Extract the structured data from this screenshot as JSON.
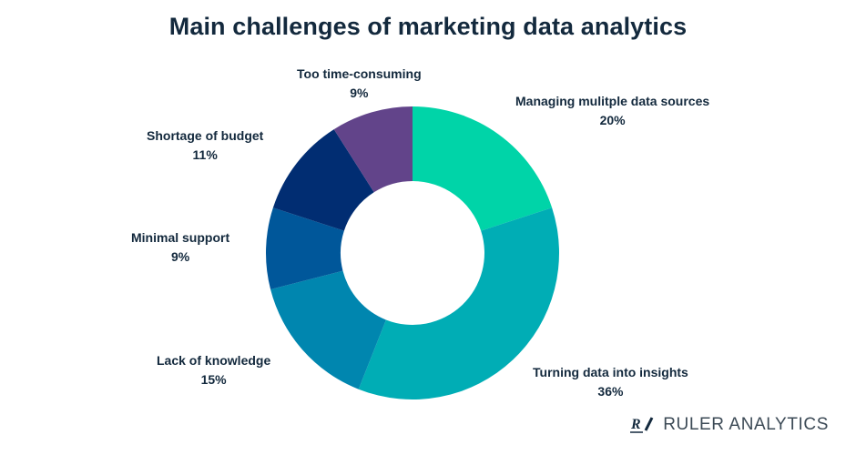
{
  "title": "Main challenges of marketing data analytics",
  "chart_data": {
    "type": "pie",
    "variant": "donut",
    "title": "Main challenges of marketing data analytics",
    "start_angle_deg": 0,
    "direction": "clockwise",
    "categories": [
      "Managing mulitple data sources",
      "Turning data into insights",
      "Lack of knowledge",
      "Minimal support",
      "Shortage of budget",
      "Too time-consuming"
    ],
    "values": [
      20,
      36,
      15,
      9,
      11,
      9
    ],
    "colors": [
      "#00D4A8",
      "#00ADB5",
      "#0086AF",
      "#00579A",
      "#012D72",
      "#62448A"
    ],
    "value_suffix": "%"
  },
  "labels": [
    {
      "name": "Managing mulitple data sources",
      "pct": "20%"
    },
    {
      "name": "Turning data into insights",
      "pct": "36%"
    },
    {
      "name": "Lack of knowledge",
      "pct": "15%"
    },
    {
      "name": "Minimal support",
      "pct": "9%"
    },
    {
      "name": "Shortage of budget",
      "pct": "11%"
    },
    {
      "name": "Too time-consuming",
      "pct": "9%"
    }
  ],
  "brand": {
    "logo_mark": "R/",
    "name": "RULER ANALYTICS"
  }
}
